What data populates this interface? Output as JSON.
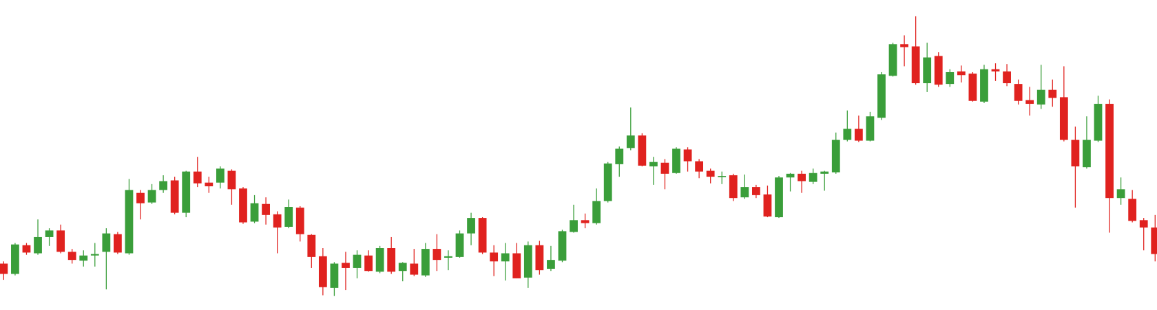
{
  "chart_data": {
    "type": "candlestick",
    "up_color": "#3a9e3a",
    "down_color": "#e0221f",
    "ylim": [
      0,
      421
    ],
    "open": [
      63,
      49,
      88,
      77,
      99,
      108,
      79,
      67,
      74,
      79,
      103,
      77,
      159,
      146,
      163,
      176,
      132,
      188,
      173,
      173,
      189,
      165,
      120,
      144,
      130,
      113,
      139,
      102,
      73,
      30,
      64,
      57,
      74,
      52,
      84,
      53,
      63,
      47,
      83,
      71,
      72,
      104,
      125,
      78,
      66,
      77,
      44,
      88,
      56,
      67,
      106,
      122,
      118,
      148,
      198,
      220,
      237,
      195,
      200,
      186,
      218,
      202,
      189,
      181,
      183,
      153,
      167,
      157,
      126,
      180,
      185,
      174,
      185,
      187,
      231,
      246,
      230,
      261,
      318,
      361,
      358,
      308,
      345,
      307,
      324,
      321,
      283,
      327,
      324,
      307,
      285,
      279,
      299,
      289,
      231,
      194,
      230,
      280,
      152,
      151,
      122,
      112
    ],
    "high": [
      66,
      91,
      91,
      123,
      111,
      116,
      83,
      81,
      91,
      111,
      106,
      178,
      163,
      171,
      183,
      181,
      189,
      208,
      181,
      195,
      191,
      167,
      156,
      153,
      134,
      150,
      141,
      103,
      84,
      65,
      79,
      81,
      81,
      87,
      99,
      65,
      83,
      91,
      103,
      81,
      108,
      132,
      126,
      88,
      91,
      91,
      93,
      94,
      87,
      109,
      143,
      131,
      165,
      201,
      222,
      275,
      240,
      208,
      205,
      221,
      221,
      205,
      192,
      188,
      185,
      184,
      170,
      169,
      182,
      186,
      189,
      192,
      189,
      241,
      271,
      264,
      269,
      323,
      363,
      373,
      399,
      363,
      350,
      327,
      332,
      323,
      333,
      335,
      334,
      313,
      303,
      333,
      313,
      331,
      249,
      263,
      291,
      286,
      180,
      163,
      125,
      129
    ],
    "low": [
      41,
      47,
      75,
      75,
      87,
      77,
      63,
      59,
      59,
      28,
      76,
      75,
      123,
      144,
      159,
      130,
      126,
      167,
      159,
      165,
      143,
      117,
      118,
      116,
      77,
      111,
      93,
      57,
      20,
      19,
      27,
      43,
      52,
      50,
      49,
      39,
      46,
      45,
      53,
      54,
      71,
      88,
      76,
      46,
      40,
      43,
      30,
      48,
      53,
      65,
      105,
      111,
      116,
      146,
      181,
      217,
      195,
      170,
      164,
      185,
      188,
      179,
      172,
      171,
      148,
      151,
      152,
      126,
      125,
      161,
      159,
      171,
      162,
      185,
      229,
      228,
      229,
      258,
      317,
      331,
      306,
      296,
      303,
      303,
      309,
      283,
      281,
      311,
      304,
      279,
      264,
      273,
      276,
      229,
      139,
      192,
      228,
      105,
      143,
      119,
      81,
      66
    ],
    "close": [
      49,
      89,
      78,
      99,
      108,
      79,
      68,
      74,
      76,
      104,
      78,
      163,
      145,
      163,
      175,
      132,
      188,
      172,
      168,
      192,
      164,
      119,
      145,
      129,
      112,
      140,
      103,
      72,
      31,
      63,
      57,
      75,
      53,
      84,
      52,
      64,
      48,
      83,
      68,
      73,
      104,
      125,
      78,
      66,
      77,
      43,
      88,
      54,
      68,
      107,
      122,
      118,
      148,
      199,
      219,
      237,
      196,
      201,
      185,
      219,
      202,
      188,
      181,
      182,
      152,
      167,
      156,
      127,
      180,
      185,
      175,
      186,
      188,
      231,
      246,
      230,
      263,
      320,
      361,
      357,
      308,
      343,
      306,
      323,
      319,
      284,
      327,
      324,
      308,
      284,
      280,
      299,
      288,
      231,
      195,
      231,
      280,
      152,
      164,
      121,
      112,
      76
    ]
  }
}
